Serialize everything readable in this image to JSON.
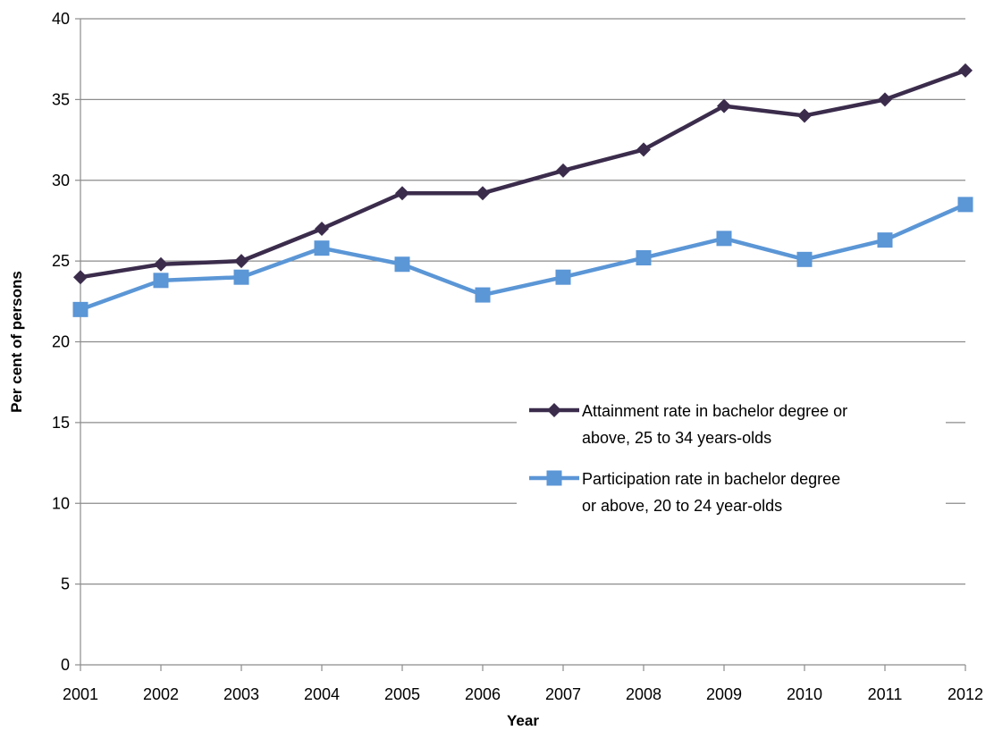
{
  "chart_data": {
    "type": "line",
    "title": "",
    "xlabel": "Year",
    "ylabel": "Per cent of persons",
    "x": [
      "2001",
      "2002",
      "2003",
      "2004",
      "2005",
      "2006",
      "2007",
      "2008",
      "2009",
      "2010",
      "2011",
      "2012"
    ],
    "ylim": [
      0,
      40
    ],
    "yticks": [
      0,
      5,
      10,
      15,
      20,
      25,
      30,
      35,
      40
    ],
    "grid": true,
    "legend_position": "right-middle",
    "series": [
      {
        "name": "Attainment rate in bachelor degree or above, 25 to 34 years-olds",
        "legend_lines": [
          "Attainment rate in bachelor degree or",
          "above, 25 to 34 years-olds"
        ],
        "color": "#3b2c4c",
        "marker": "diamond",
        "values": [
          24.0,
          24.8,
          25.0,
          27.0,
          29.2,
          29.2,
          30.6,
          31.9,
          34.6,
          34.0,
          35.0,
          36.8
        ]
      },
      {
        "name": "Participation rate in bachelor degree or above, 20 to 24 year-olds",
        "legend_lines": [
          "Participation rate in bachelor degree",
          "or above, 20 to 24 year-olds"
        ],
        "color": "#5b96d6",
        "marker": "square",
        "values": [
          22.0,
          23.8,
          24.0,
          25.8,
          24.8,
          22.9,
          24.0,
          25.2,
          26.4,
          25.1,
          26.3,
          28.5
        ]
      }
    ]
  }
}
